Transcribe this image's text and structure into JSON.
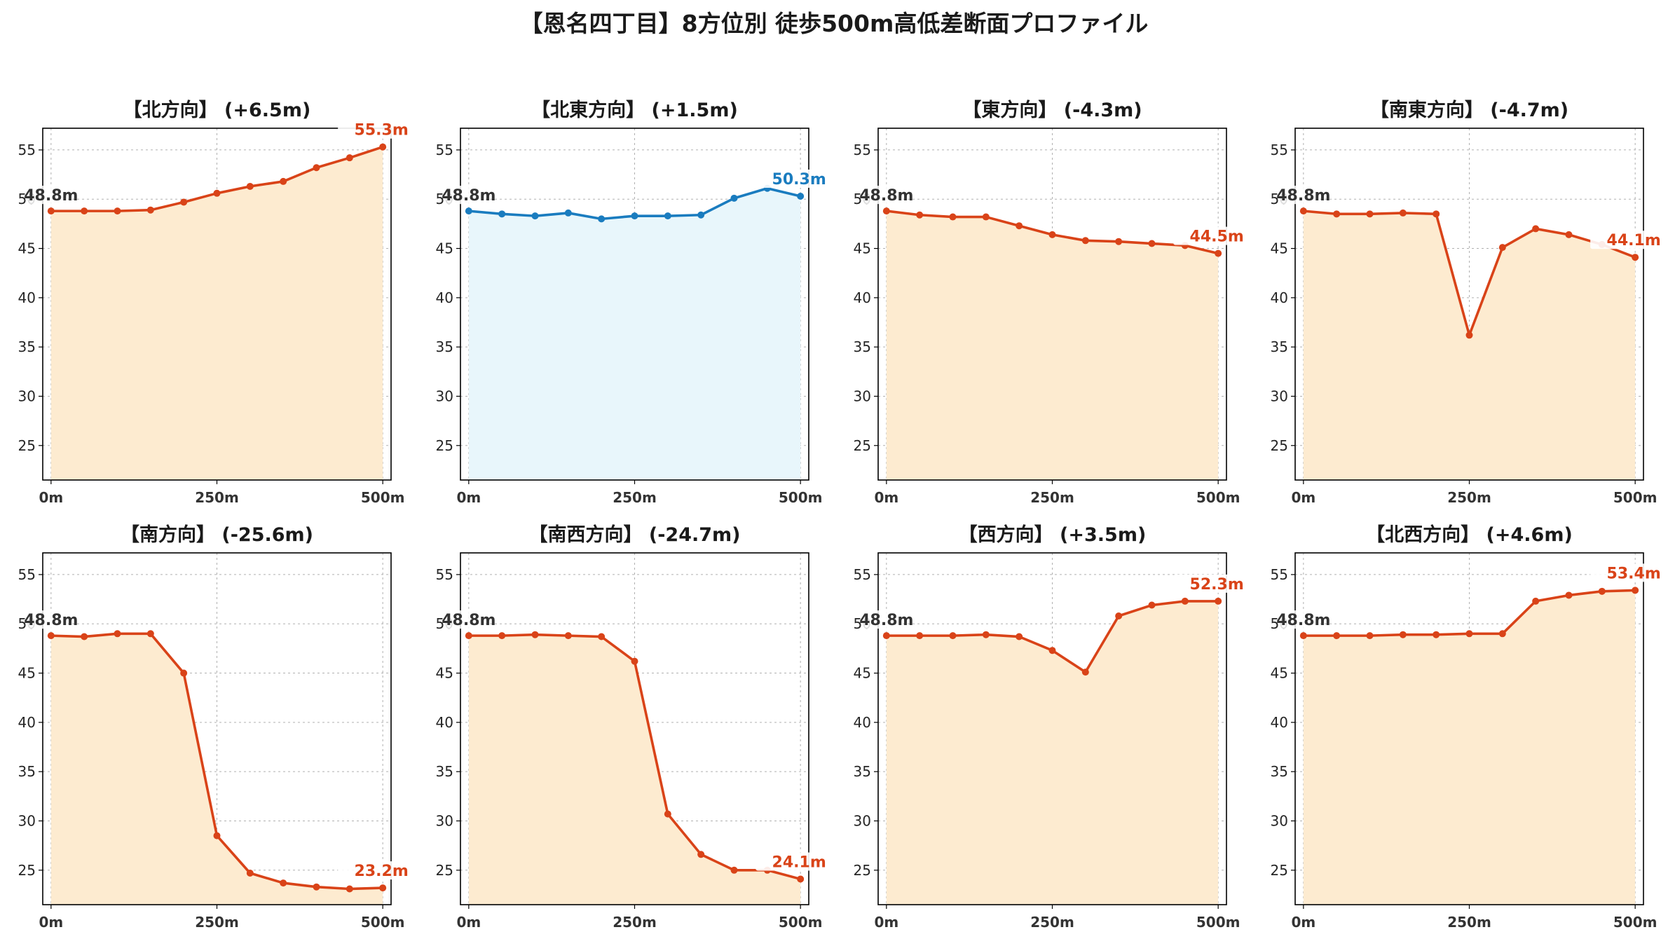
{
  "title": "【恩名四丁目】8方位別 徒歩500m高低差断面プロファイル",
  "colors": {
    "down_line": "#d94318",
    "down_fill": "#fdebd0",
    "up_line": "#1a7cbf",
    "up_fill": "#e8f6fb",
    "start_label": "#333333",
    "grid": "#b0b0b0"
  },
  "chart_data": [
    {
      "type": "area",
      "title": "【北方向】 (+6.5m)",
      "x": [
        0,
        50,
        100,
        150,
        200,
        250,
        300,
        350,
        400,
        450,
        500
      ],
      "values": [
        48.8,
        48.8,
        48.8,
        48.9,
        49.7,
        50.6,
        51.3,
        51.8,
        53.2,
        54.2,
        55.3
      ],
      "start_label": "48.8m",
      "end_label": "55.3m",
      "style": "orange",
      "ylim": [
        21.5,
        57.2
      ],
      "yticks": [
        25,
        30,
        35,
        40,
        45,
        50,
        55
      ],
      "xticks": [
        "0m",
        "250m",
        "500m"
      ],
      "grid": true
    },
    {
      "type": "area",
      "title": "【北東方向】 (+1.5m)",
      "x": [
        0,
        50,
        100,
        150,
        200,
        250,
        300,
        350,
        400,
        450,
        500
      ],
      "values": [
        48.8,
        48.5,
        48.3,
        48.6,
        48.0,
        48.3,
        48.3,
        48.4,
        50.1,
        51.1,
        50.3
      ],
      "start_label": "48.8m",
      "end_label": "50.3m",
      "style": "blue",
      "ylim": [
        21.5,
        57.2
      ],
      "yticks": [
        25,
        30,
        35,
        40,
        45,
        50,
        55
      ],
      "xticks": [
        "0m",
        "250m",
        "500m"
      ],
      "grid": true
    },
    {
      "type": "area",
      "title": "【東方向】 (-4.3m)",
      "x": [
        0,
        50,
        100,
        150,
        200,
        250,
        300,
        350,
        400,
        450,
        500
      ],
      "values": [
        48.8,
        48.4,
        48.2,
        48.2,
        47.3,
        46.4,
        45.8,
        45.7,
        45.5,
        45.3,
        44.5
      ],
      "start_label": "48.8m",
      "end_label": "44.5m",
      "style": "orange",
      "ylim": [
        21.5,
        57.2
      ],
      "yticks": [
        25,
        30,
        35,
        40,
        45,
        50,
        55
      ],
      "xticks": [
        "0m",
        "250m",
        "500m"
      ],
      "grid": true
    },
    {
      "type": "area",
      "title": "【南東方向】 (-4.7m)",
      "x": [
        0,
        50,
        100,
        150,
        200,
        250,
        300,
        350,
        400,
        450,
        500
      ],
      "values": [
        48.8,
        48.5,
        48.5,
        48.6,
        48.5,
        36.2,
        45.1,
        47.0,
        46.4,
        45.4,
        44.1
      ],
      "start_label": "48.8m",
      "end_label": "44.1m",
      "style": "orange",
      "ylim": [
        21.5,
        57.2
      ],
      "yticks": [
        25,
        30,
        35,
        40,
        45,
        50,
        55
      ],
      "xticks": [
        "0m",
        "250m",
        "500m"
      ],
      "grid": true
    },
    {
      "type": "area",
      "title": "【南方向】 (-25.6m)",
      "x": [
        0,
        50,
        100,
        150,
        200,
        250,
        300,
        350,
        400,
        450,
        500
      ],
      "values": [
        48.8,
        48.7,
        49.0,
        49.0,
        45.0,
        28.5,
        24.7,
        23.7,
        23.3,
        23.1,
        23.2
      ],
      "start_label": "48.8m",
      "end_label": "23.2m",
      "style": "orange",
      "ylim": [
        21.5,
        57.2
      ],
      "yticks": [
        25,
        30,
        35,
        40,
        45,
        50,
        55
      ],
      "xticks": [
        "0m",
        "250m",
        "500m"
      ],
      "grid": true
    },
    {
      "type": "area",
      "title": "【南西方向】 (-24.7m)",
      "x": [
        0,
        50,
        100,
        150,
        200,
        250,
        300,
        350,
        400,
        450,
        500
      ],
      "values": [
        48.8,
        48.8,
        48.9,
        48.8,
        48.7,
        46.2,
        30.7,
        26.6,
        25.0,
        25.0,
        24.1
      ],
      "start_label": "48.8m",
      "end_label": "24.1m",
      "style": "orange",
      "ylim": [
        21.5,
        57.2
      ],
      "yticks": [
        25,
        30,
        35,
        40,
        45,
        50,
        55
      ],
      "xticks": [
        "0m",
        "250m",
        "500m"
      ],
      "grid": true
    },
    {
      "type": "area",
      "title": "【西方向】 (+3.5m)",
      "x": [
        0,
        50,
        100,
        150,
        200,
        250,
        300,
        350,
        400,
        450,
        500
      ],
      "values": [
        48.8,
        48.8,
        48.8,
        48.9,
        48.7,
        47.3,
        45.1,
        50.8,
        51.9,
        52.3,
        52.3
      ],
      "start_label": "48.8m",
      "end_label": "52.3m",
      "style": "orange",
      "ylim": [
        21.5,
        57.2
      ],
      "yticks": [
        25,
        30,
        35,
        40,
        45,
        50,
        55
      ],
      "xticks": [
        "0m",
        "250m",
        "500m"
      ],
      "grid": true
    },
    {
      "type": "area",
      "title": "【北西方向】 (+4.6m)",
      "x": [
        0,
        50,
        100,
        150,
        200,
        250,
        300,
        350,
        400,
        450,
        500
      ],
      "values": [
        48.8,
        48.8,
        48.8,
        48.9,
        48.9,
        49.0,
        49.0,
        52.3,
        52.9,
        53.3,
        53.4
      ],
      "start_label": "48.8m",
      "end_label": "53.4m",
      "style": "orange",
      "ylim": [
        21.5,
        57.2
      ],
      "yticks": [
        25,
        30,
        35,
        40,
        45,
        50,
        55
      ],
      "xticks": [
        "0m",
        "250m",
        "500m"
      ],
      "grid": true
    }
  ]
}
